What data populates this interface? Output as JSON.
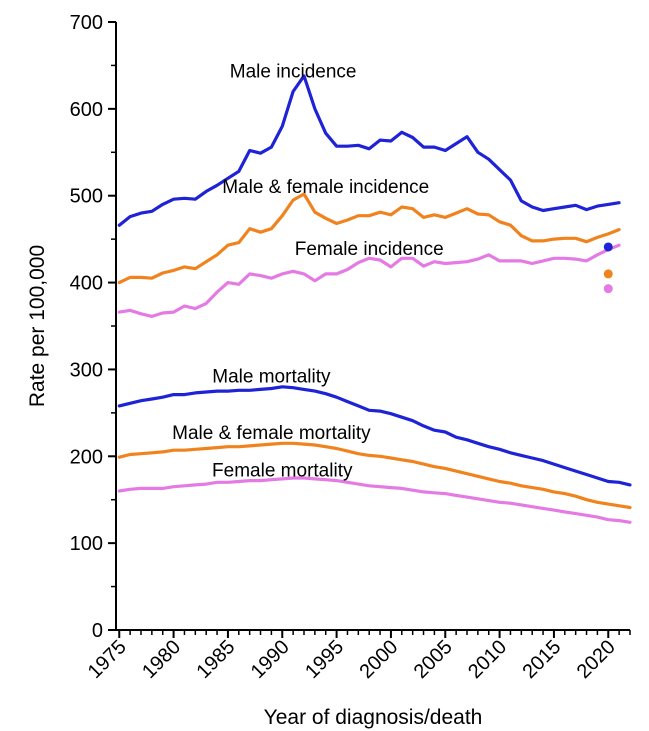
{
  "chart_data": {
    "type": "line",
    "title": "",
    "xlabel": "Year of diagnosis/death",
    "ylabel": "Rate per 100,000",
    "xlim": [
      1974.7,
      2022
    ],
    "ylim": [
      0,
      700
    ],
    "x_ticks": [
      1975,
      1980,
      1985,
      1990,
      1995,
      2000,
      2005,
      2010,
      2015,
      2020
    ],
    "x_tick_labels": [
      "1975",
      "1980",
      "1985",
      "1990",
      "1995",
      "2000",
      "2005",
      "2010",
      "2015",
      "2020"
    ],
    "y_ticks": [
      0,
      100,
      200,
      300,
      400,
      500,
      600,
      700
    ],
    "y_tick_labels": [
      "0",
      "100",
      "200",
      "300",
      "400",
      "500",
      "600",
      "700"
    ],
    "grid": false,
    "colors": {
      "incidence_male": "#1f23d6",
      "incidence_both": "#f0831e",
      "incidence_female": "#e47be4",
      "mortality_male": "#1f23d6",
      "mortality_both": "#f0831e",
      "mortality_female": "#e47be4"
    },
    "series": [
      {
        "key": "male_incidence",
        "name": "Male incidence",
        "color": "#1f23d6",
        "x": [
          1975,
          1976,
          1977,
          1978,
          1979,
          1980,
          1981,
          1982,
          1983,
          1984,
          1985,
          1986,
          1987,
          1988,
          1989,
          1990,
          1991,
          1992,
          1993,
          1994,
          1995,
          1996,
          1997,
          1998,
          1999,
          2000,
          2001,
          2002,
          2003,
          2004,
          2005,
          2006,
          2007,
          2008,
          2009,
          2010,
          2011,
          2012,
          2013,
          2014,
          2015,
          2016,
          2017,
          2018,
          2019,
          2020,
          2021
        ],
        "values": [
          466,
          476,
          480,
          482,
          490,
          496,
          497,
          496,
          505,
          512,
          520,
          528,
          552,
          549,
          556,
          580,
          620,
          638,
          600,
          572,
          557,
          557,
          558,
          554,
          564,
          563,
          573,
          567,
          556,
          556,
          552,
          560,
          568,
          550,
          542,
          530,
          518,
          494,
          487,
          483,
          485,
          487,
          489,
          484,
          488,
          490,
          492
        ],
        "label_anchor": [
          1991,
          636
        ]
      },
      {
        "key": "both_incidence",
        "name": "Male & female incidence",
        "color": "#f0831e",
        "x": [
          1975,
          1976,
          1977,
          1978,
          1979,
          1980,
          1981,
          1982,
          1983,
          1984,
          1985,
          1986,
          1987,
          1988,
          1989,
          1990,
          1991,
          1992,
          1993,
          1994,
          1995,
          1996,
          1997,
          1998,
          1999,
          2000,
          2001,
          2002,
          2003,
          2004,
          2005,
          2006,
          2007,
          2008,
          2009,
          2010,
          2011,
          2012,
          2013,
          2014,
          2015,
          2016,
          2017,
          2018,
          2019,
          2020,
          2021
        ],
        "values": [
          400,
          406,
          406,
          405,
          411,
          414,
          418,
          416,
          424,
          432,
          443,
          446,
          462,
          458,
          462,
          477,
          495,
          502,
          481,
          474,
          468,
          472,
          477,
          477,
          481,
          478,
          487,
          485,
          475,
          478,
          475,
          480,
          485,
          479,
          478,
          470,
          466,
          454,
          448,
          448,
          450,
          451,
          451,
          447,
          452,
          456,
          461
        ],
        "label_anchor": [
          1994,
          503
        ]
      },
      {
        "key": "female_incidence",
        "name": "Female incidence",
        "color": "#e47be4",
        "x": [
          1975,
          1976,
          1977,
          1978,
          1979,
          1980,
          1981,
          1982,
          1983,
          1984,
          1985,
          1986,
          1987,
          1988,
          1989,
          1990,
          1991,
          1992,
          1993,
          1994,
          1995,
          1996,
          1997,
          1998,
          1999,
          2000,
          2001,
          2002,
          2003,
          2004,
          2005,
          2006,
          2007,
          2008,
          2009,
          2010,
          2011,
          2012,
          2013,
          2014,
          2015,
          2016,
          2017,
          2018,
          2019,
          2020,
          2021
        ],
        "values": [
          366,
          368,
          364,
          361,
          365,
          366,
          373,
          370,
          376,
          389,
          400,
          398,
          410,
          408,
          405,
          410,
          413,
          410,
          402,
          410,
          410,
          415,
          423,
          428,
          426,
          418,
          428,
          428,
          419,
          424,
          422,
          423,
          424,
          427,
          432,
          425,
          425,
          425,
          422,
          425,
          428,
          428,
          427,
          425,
          432,
          438,
          443
        ],
        "label_anchor": [
          1998,
          432
        ]
      },
      {
        "key": "male_mortality",
        "name": "Male mortality",
        "color": "#1f23d6",
        "x": [
          1975,
          1976,
          1977,
          1978,
          1979,
          1980,
          1981,
          1982,
          1983,
          1984,
          1985,
          1986,
          1987,
          1988,
          1989,
          1990,
          1991,
          1992,
          1993,
          1994,
          1995,
          1996,
          1997,
          1998,
          1999,
          2000,
          2001,
          2002,
          2003,
          2004,
          2005,
          2006,
          2007,
          2008,
          2009,
          2010,
          2011,
          2012,
          2013,
          2014,
          2015,
          2016,
          2017,
          2018,
          2019,
          2020,
          2021,
          2022
        ],
        "values": [
          258,
          261,
          264,
          266,
          268,
          271,
          271,
          273,
          274,
          275,
          275,
          276,
          276,
          277,
          278,
          280,
          279,
          277,
          275,
          272,
          268,
          263,
          258,
          253,
          252,
          249,
          245,
          241,
          235,
          230,
          228,
          222,
          219,
          215,
          211,
          208,
          204,
          201,
          198,
          195,
          191,
          187,
          183,
          179,
          175,
          171,
          170,
          167
        ],
        "label_anchor": [
          1989,
          285
        ]
      },
      {
        "key": "both_mortality",
        "name": "Male & female mortality",
        "color": "#f0831e",
        "x": [
          1975,
          1976,
          1977,
          1978,
          1979,
          1980,
          1981,
          1982,
          1983,
          1984,
          1985,
          1986,
          1987,
          1988,
          1989,
          1990,
          1991,
          1992,
          1993,
          1994,
          1995,
          1996,
          1997,
          1998,
          1999,
          2000,
          2001,
          2002,
          2003,
          2004,
          2005,
          2006,
          2007,
          2008,
          2009,
          2010,
          2011,
          2012,
          2013,
          2014,
          2015,
          2016,
          2017,
          2018,
          2019,
          2020,
          2021,
          2022
        ],
        "values": [
          199,
          202,
          203,
          204,
          205,
          207,
          207,
          208,
          209,
          210,
          211,
          211,
          212,
          213,
          214,
          215,
          215,
          214,
          213,
          211,
          209,
          206,
          203,
          201,
          200,
          198,
          196,
          194,
          191,
          188,
          186,
          183,
          180,
          177,
          174,
          171,
          169,
          166,
          164,
          162,
          159,
          157,
          154,
          150,
          147,
          145,
          143,
          141
        ],
        "label_anchor": [
          1989,
          220
        ]
      },
      {
        "key": "female_mortality",
        "name": "Female mortality",
        "color": "#e47be4",
        "x": [
          1975,
          1976,
          1977,
          1978,
          1979,
          1980,
          1981,
          1982,
          1983,
          1984,
          1985,
          1986,
          1987,
          1988,
          1989,
          1990,
          1991,
          1992,
          1993,
          1994,
          1995,
          1996,
          1997,
          1998,
          1999,
          2000,
          2001,
          2002,
          2003,
          2004,
          2005,
          2006,
          2007,
          2008,
          2009,
          2010,
          2011,
          2012,
          2013,
          2014,
          2015,
          2016,
          2017,
          2018,
          2019,
          2020,
          2021,
          2022
        ],
        "values": [
          160,
          162,
          163,
          163,
          163,
          165,
          166,
          167,
          168,
          170,
          170,
          171,
          172,
          172,
          173,
          174,
          175,
          175,
          174,
          173,
          172,
          170,
          168,
          166,
          165,
          164,
          163,
          161,
          159,
          158,
          157,
          155,
          153,
          151,
          149,
          147,
          146,
          144,
          142,
          140,
          138,
          136,
          134,
          132,
          130,
          127,
          126,
          124
        ],
        "label_anchor": [
          1990,
          177
        ]
      }
    ],
    "extra_points": [
      {
        "name": "Male incidence 2020 point",
        "x": 2020,
        "value": 441,
        "color": "#1f23d6"
      },
      {
        "name": "Male & female incidence 2020 point",
        "x": 2020,
        "value": 410,
        "color": "#f0831e"
      },
      {
        "name": "Female incidence 2020 point",
        "x": 2020,
        "value": 393,
        "color": "#e47be4"
      }
    ]
  }
}
